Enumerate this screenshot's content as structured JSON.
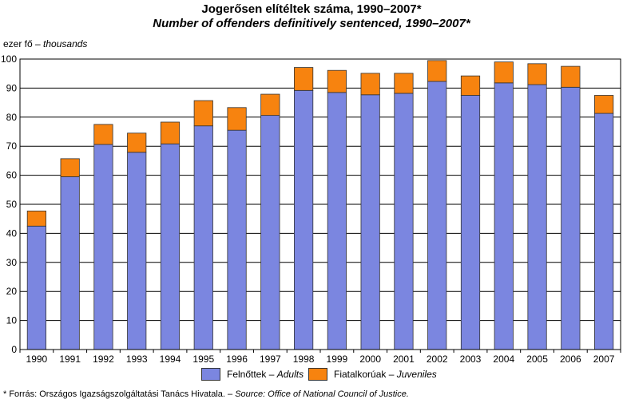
{
  "title_hu": "Jogerősen elítéltek száma, 1990–2007*",
  "title_en": "Number of offenders definitively sentenced, 1990–2007*",
  "unit_hu": "ezer fő –",
  "unit_en": "thousands",
  "legend": {
    "adults_hu": "Felnőttek –",
    "adults_en": "Adults",
    "juveniles_hu": "Fiatalkorúak –",
    "juveniles_en": "Juveniles"
  },
  "footnote": {
    "hu": "*  Forrás: Országos Igazságszolgáltatási Tanács Hivatala. –",
    "en": "Source: Office of National Council of Justice."
  },
  "colors": {
    "adults": "#7b86e0",
    "juveniles": "#f7830f",
    "grid": "#000000"
  },
  "chart_data": {
    "type": "bar",
    "stacked": true,
    "categories": [
      "1990",
      "1991",
      "1992",
      "1993",
      "1994",
      "1995",
      "1996",
      "1997",
      "1998",
      "1999",
      "2000",
      "2001",
      "2002",
      "2003",
      "2004",
      "2005",
      "2006",
      "2007"
    ],
    "series": [
      {
        "name": "Felnőttek – Adults",
        "values": [
          42.5,
          59.5,
          70.6,
          67.9,
          70.8,
          77.0,
          75.5,
          80.6,
          89.2,
          88.5,
          87.7,
          88.2,
          92.3,
          87.5,
          91.8,
          91.2,
          90.3,
          81.3
        ]
      },
      {
        "name": "Fiatalkorúak – Juveniles",
        "values": [
          5.2,
          6.2,
          6.9,
          6.6,
          7.5,
          8.7,
          7.8,
          7.3,
          7.9,
          7.6,
          7.4,
          6.9,
          7.2,
          6.7,
          7.2,
          7.2,
          7.2,
          6.2
        ]
      }
    ],
    "ylim": [
      0,
      100
    ],
    "yticks": [
      0,
      10,
      20,
      30,
      40,
      50,
      60,
      70,
      80,
      90,
      100
    ],
    "grid": true,
    "legend_position": "bottom"
  }
}
